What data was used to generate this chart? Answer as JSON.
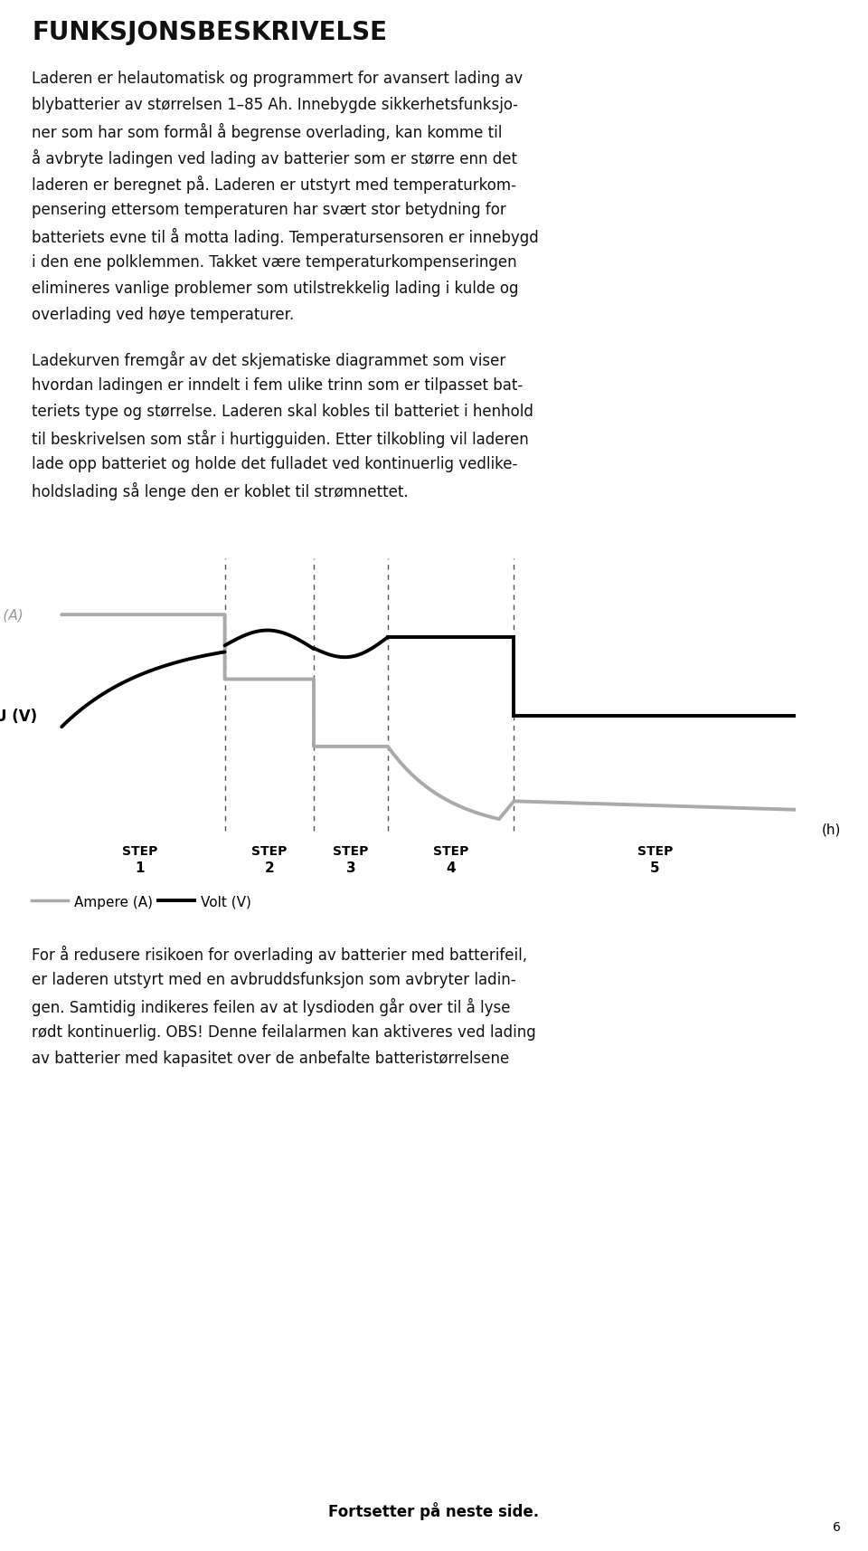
{
  "bg_color": "#ffffff",
  "text_color": "#111111",
  "title": "FUNKSJONSBESKRIVELSE",
  "para1_lines": [
    "Laderen er helautomatisk og programmert for avansert lading av",
    "blybatterier av størrelsen 1–85 Ah. Innebygde sikkerhetsfunksjо­",
    "ner som har som formål å begrense overlading, kan komme til",
    "å avbryte ladingen ved lading av batterier som er større enn det",
    "laderen er beregnet på. Laderen er utstyrt med temperaturkom­",
    "pensering ettersom temperaturen har svært stor betydning for",
    "batteriets evne til å motta lading. Temperatursensoren er innebygd",
    "i den ene polklemmen. Takket være temperaturkompenseringen",
    "elimineres vanlige problemer som utilstrekkelig lading i kulde og",
    "overlading ved høye temperaturer."
  ],
  "para2_lines": [
    "Ladekurven fremgår av det skjematiske diagrammet som viser",
    "hvordan ladingen er inndelt i fem ulike trinn som er tilpasset bat­",
    "teriets type og størrelse. Laderen skal kobles til batteriet i henhold",
    "til beskrivelsen som står i hurtigguiden. Etter tilkobling vil laderen",
    "lade opp batteriet og holde det fulladet ved kontinuerlig vedlike­",
    "holdslading så lenge den er koblet til strømnettet."
  ],
  "para3_lines": [
    "For å redusere risikoen for overlading av batterier med batterifeil,",
    "er laderen utstyrt med en avbruddsfunksjon som avbryter ladin­",
    "gen. Samtidig indikeres feilen av at lysdioden går over til å lyse",
    "rødt kontinuerlig. OBS! Denne feilalarmen kan aktiveres ved lading",
    "av batterier med kapasitet over de anbefalte batteristørrelsene"
  ],
  "footer": "Fortsetter på neste side.",
  "page_num": "6",
  "legend_ampere": "Ampere (A)",
  "legend_volt": "Volt (V)",
  "axis_label_I": "I (A)",
  "axis_label_U": "U (V)",
  "axis_label_h": "(h)",
  "gray_color": "#aaaaaa",
  "black_color": "#111111",
  "dashed_color": "#555555"
}
